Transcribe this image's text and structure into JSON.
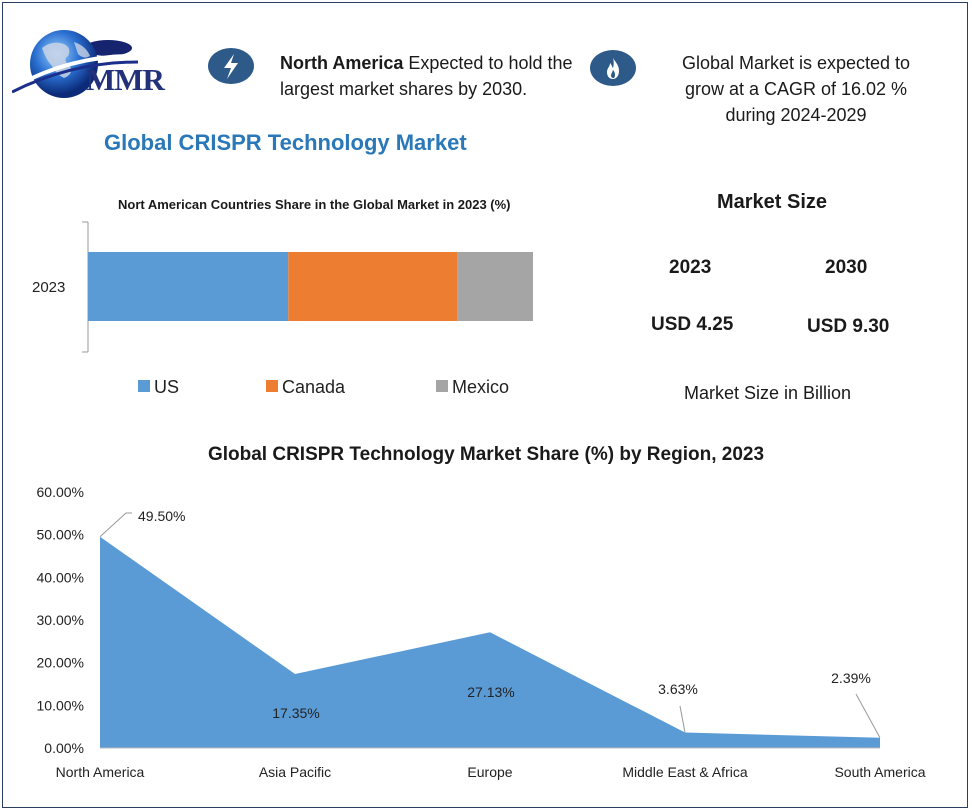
{
  "brand": {
    "logo_text": "MMR"
  },
  "header": {
    "highlight1_bold": "North America",
    "highlight1_rest": " Expected to hold the largest market shares by 2030.",
    "highlight2": "Global Market is expected to grow at a CAGR of 16.02 % during 2024-2029",
    "icon1": "lightning-icon",
    "icon2": "flame-icon"
  },
  "main_title": "Global CRISPR Technology Market",
  "market_size": {
    "title": "Market Size",
    "year_a": "2023",
    "year_b": "2030",
    "value_a": "USD 4.25",
    "value_b": "USD 9.30",
    "note": "Market Size in Billion"
  },
  "colors": {
    "us": "#5b9bd5",
    "canada": "#ed7d31",
    "mexico": "#a5a5a5",
    "area": "#5b9bd5",
    "title_blue": "#2a78b8"
  },
  "chart_data": [
    {
      "type": "bar",
      "orientation": "horizontal",
      "stacked": true,
      "title": "Nort American Countries Share in the Global Market in 2023 (%)",
      "categories": [
        "2023"
      ],
      "series": [
        {
          "name": "US",
          "values": [
            45
          ]
        },
        {
          "name": "Canada",
          "values": [
            38
          ]
        },
        {
          "name": "Mexico",
          "values": [
            17
          ]
        }
      ],
      "xlim": [
        0,
        100
      ],
      "legend": "bottom"
    },
    {
      "type": "area",
      "title": "Global CRISPR Technology Market Share (%) by Region, 2023",
      "categories": [
        "North America",
        "Asia Pacific",
        "Europe",
        "Middle East & Africa",
        "South America"
      ],
      "values": [
        49.5,
        17.35,
        27.13,
        3.63,
        2.39
      ],
      "data_labels": [
        "49.50%",
        "17.35%",
        "27.13%",
        "3.63%",
        "2.39%"
      ],
      "ylim": [
        0,
        60
      ],
      "yticks": [
        "0.00%",
        "10.00%",
        "20.00%",
        "30.00%",
        "40.00%",
        "50.00%",
        "60.00%"
      ],
      "grid": false
    }
  ]
}
